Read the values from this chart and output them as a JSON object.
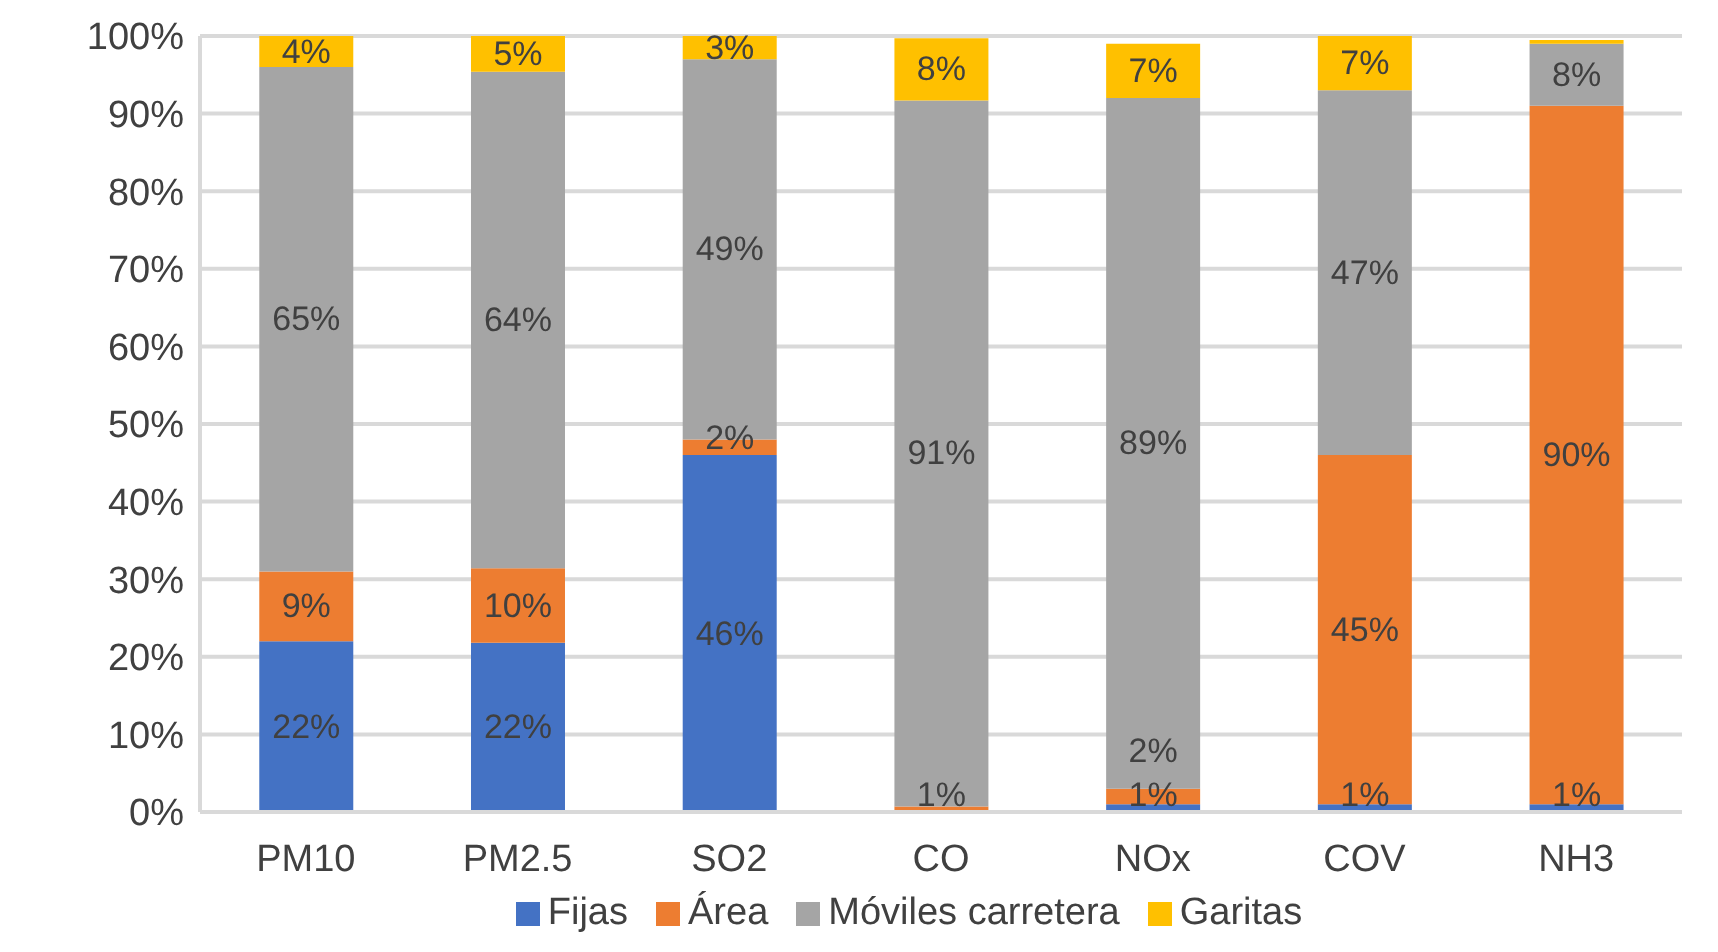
{
  "chart_data": {
    "type": "bar",
    "stacked": true,
    "categories": [
      "PM10",
      "PM2.5",
      "SO2",
      "CO",
      "NOx",
      "COV",
      "NH3"
    ],
    "series": [
      {
        "name": "Fijas",
        "color": "#4472c4",
        "values": [
          22,
          21.8,
          46,
          0,
          1,
          1,
          1
        ],
        "value_labels": [
          "22%",
          "22%",
          "46%",
          null,
          "1%",
          "1%",
          "1%"
        ]
      },
      {
        "name": "Área",
        "color": "#ed7d31",
        "values": [
          9,
          9.6,
          2,
          0.7,
          2,
          45,
          90
        ],
        "value_labels": [
          "9%",
          "10%",
          "2%",
          "1%",
          "2%",
          "45%",
          "90%"
        ]
      },
      {
        "name": "Móviles carretera",
        "color": "#a5a5a5",
        "values": [
          65,
          64,
          49,
          91,
          89,
          47,
          8
        ],
        "value_labels": [
          "65%",
          "64%",
          "49%",
          "91%",
          "89%",
          "47%",
          "8%"
        ]
      },
      {
        "name": "Garitas",
        "color": "#ffc000",
        "values": [
          4,
          4.6,
          3,
          8,
          7,
          7,
          0.5
        ],
        "value_labels": [
          "4%",
          "5%",
          "3%",
          "8%",
          "7%",
          "7%",
          null
        ]
      }
    ],
    "ylim": [
      0,
      100
    ],
    "yticks": [
      {
        "value": 0,
        "label": "0%"
      },
      {
        "value": 10,
        "label": "10%"
      },
      {
        "value": 20,
        "label": "20%"
      },
      {
        "value": 30,
        "label": "30%"
      },
      {
        "value": 40,
        "label": "40%"
      },
      {
        "value": 50,
        "label": "50%"
      },
      {
        "value": 60,
        "label": "60%"
      },
      {
        "value": 70,
        "label": "70%"
      },
      {
        "value": 80,
        "label": "80%"
      },
      {
        "value": 90,
        "label": "90%"
      },
      {
        "value": 100,
        "label": "100%"
      }
    ],
    "grid": "y",
    "legend": "bottom"
  }
}
